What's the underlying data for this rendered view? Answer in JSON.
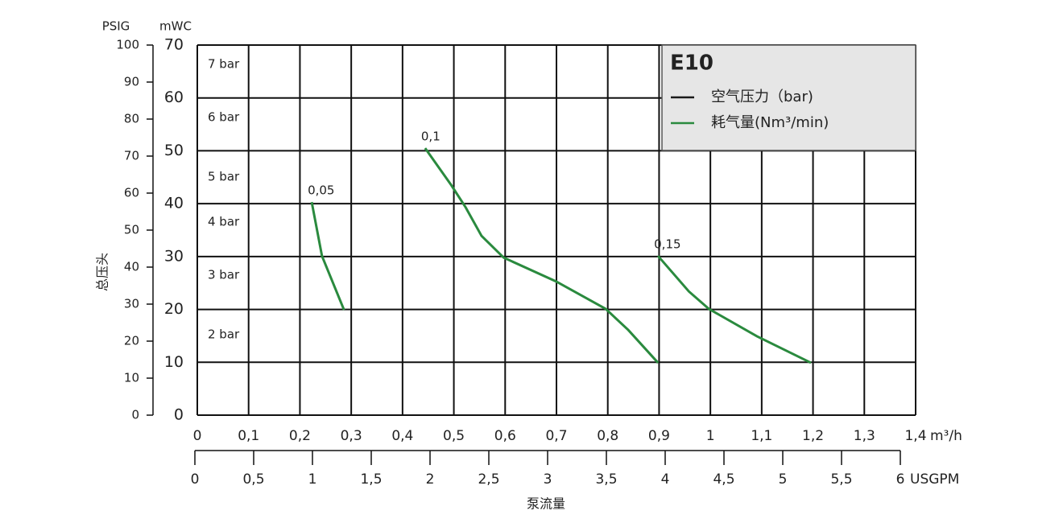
{
  "chart_data": {
    "type": "line",
    "y_label_left": "PSIG",
    "y_label_right": "mWC",
    "y_title": "总压头",
    "x_title": "泵流量",
    "xlim": [
      0,
      1.4
    ],
    "xticks": [
      0,
      {
        "value": 0.1,
        "label": "0,1"
      },
      {
        "value": 0.2,
        "label": "0,2"
      },
      {
        "value": 0.3,
        "label": "0,3"
      },
      {
        "value": 0.4,
        "label": "0,4"
      },
      {
        "value": 0.5,
        "label": "0,5"
      },
      {
        "value": 0.6,
        "label": "0,6"
      },
      {
        "value": 0.7,
        "label": "0,7"
      },
      {
        "value": 0.8,
        "label": "0,8"
      },
      {
        "value": 0.9,
        "label": "0,9"
      },
      1,
      {
        "value": 1.1,
        "label": "1,1"
      },
      {
        "value": 1.2,
        "label": "1,2"
      },
      {
        "value": 1.3,
        "label": "1,3"
      },
      {
        "value": 1.4,
        "label": "1,4"
      }
    ],
    "x_unit": "m³/h",
    "x2lim": [
      0,
      6
    ],
    "x2ticks": [
      0,
      {
        "value": 0.5,
        "label": "0,5"
      },
      1,
      {
        "value": 1.5,
        "label": "1,5"
      },
      2,
      {
        "value": 2.5,
        "label": "2,5"
      },
      3,
      {
        "value": 3.5,
        "label": "3,5"
      },
      4,
      {
        "value": 4.5,
        "label": "4,5"
      },
      5,
      {
        "value": 5.5,
        "label": "5,5"
      },
      6
    ],
    "x2_unit": "USGPM",
    "ylim": [
      0,
      70
    ],
    "yticks": [
      0,
      10,
      20,
      30,
      40,
      50,
      60,
      70
    ],
    "y2lim": [
      0,
      100
    ],
    "y2ticks": [
      0,
      10,
      20,
      30,
      40,
      50,
      60,
      70,
      80,
      90,
      100
    ],
    "pressure_labels": [
      "7 bar",
      "6 bar",
      "5 bar",
      "4 bar",
      "3 bar",
      "2 bar"
    ],
    "legend": {
      "title": "E10",
      "entries": [
        {
          "name": "空气压力（bar)",
          "color": "#1a1a1a"
        },
        {
          "name": "耗气量(Nm³/min)",
          "color": "#2a8a3e"
        }
      ]
    },
    "series": [
      {
        "label": "0,05",
        "color": "#2a8a3e",
        "x": [
          0.223,
          0.243,
          0.286
        ],
        "values": [
          40.3,
          30.1,
          19.9
        ]
      },
      {
        "label": "0,1",
        "color": "#2a8a3e",
        "x": [
          0.444,
          0.495,
          0.523,
          0.554,
          0.597,
          0.699,
          0.796,
          0.84,
          0.898
        ],
        "values": [
          50.5,
          43.5,
          39.3,
          33.9,
          29.8,
          25.3,
          20.1,
          16.1,
          9.9
        ]
      },
      {
        "label": "0,15",
        "color": "#2a8a3e",
        "x": [
          0.898,
          0.958,
          0.997,
          1.091,
          1.196
        ],
        "values": [
          30.1,
          23.4,
          20.1,
          14.9,
          9.9
        ]
      }
    ]
  }
}
